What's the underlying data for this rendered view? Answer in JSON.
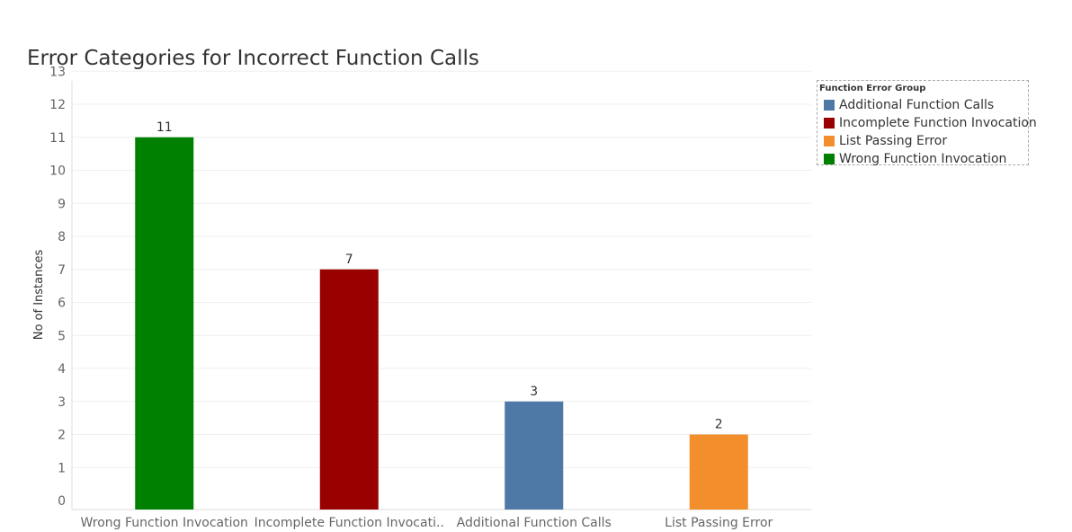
{
  "chart_data": {
    "type": "bar",
    "title": "Error Categories for Incorrect Function Calls",
    "xlabel": "",
    "ylabel": "No of Instances",
    "ylim": [
      0,
      13
    ],
    "yticks": [
      0,
      1,
      2,
      3,
      4,
      5,
      6,
      7,
      8,
      9,
      10,
      11,
      12,
      13
    ],
    "categories": [
      "Wrong Function Invocation",
      "Incomplete Function Invocati..",
      "Additional Function Calls",
      "List Passing Error"
    ],
    "values": [
      11,
      7,
      3,
      2
    ],
    "bar_colors": [
      "#008000",
      "#990000",
      "#4e79a7",
      "#f28e2b"
    ],
    "grid": true,
    "legend": {
      "title": "Function Error Group",
      "placement": "top-right",
      "items": [
        {
          "label": "Additional Function Calls",
          "color": "#4e79a7"
        },
        {
          "label": "Incomplete Function Invocation",
          "color": "#990000"
        },
        {
          "label": "List Passing Error",
          "color": "#f28e2b"
        },
        {
          "label": "Wrong Function Invocation",
          "color": "#008000"
        }
      ]
    }
  }
}
